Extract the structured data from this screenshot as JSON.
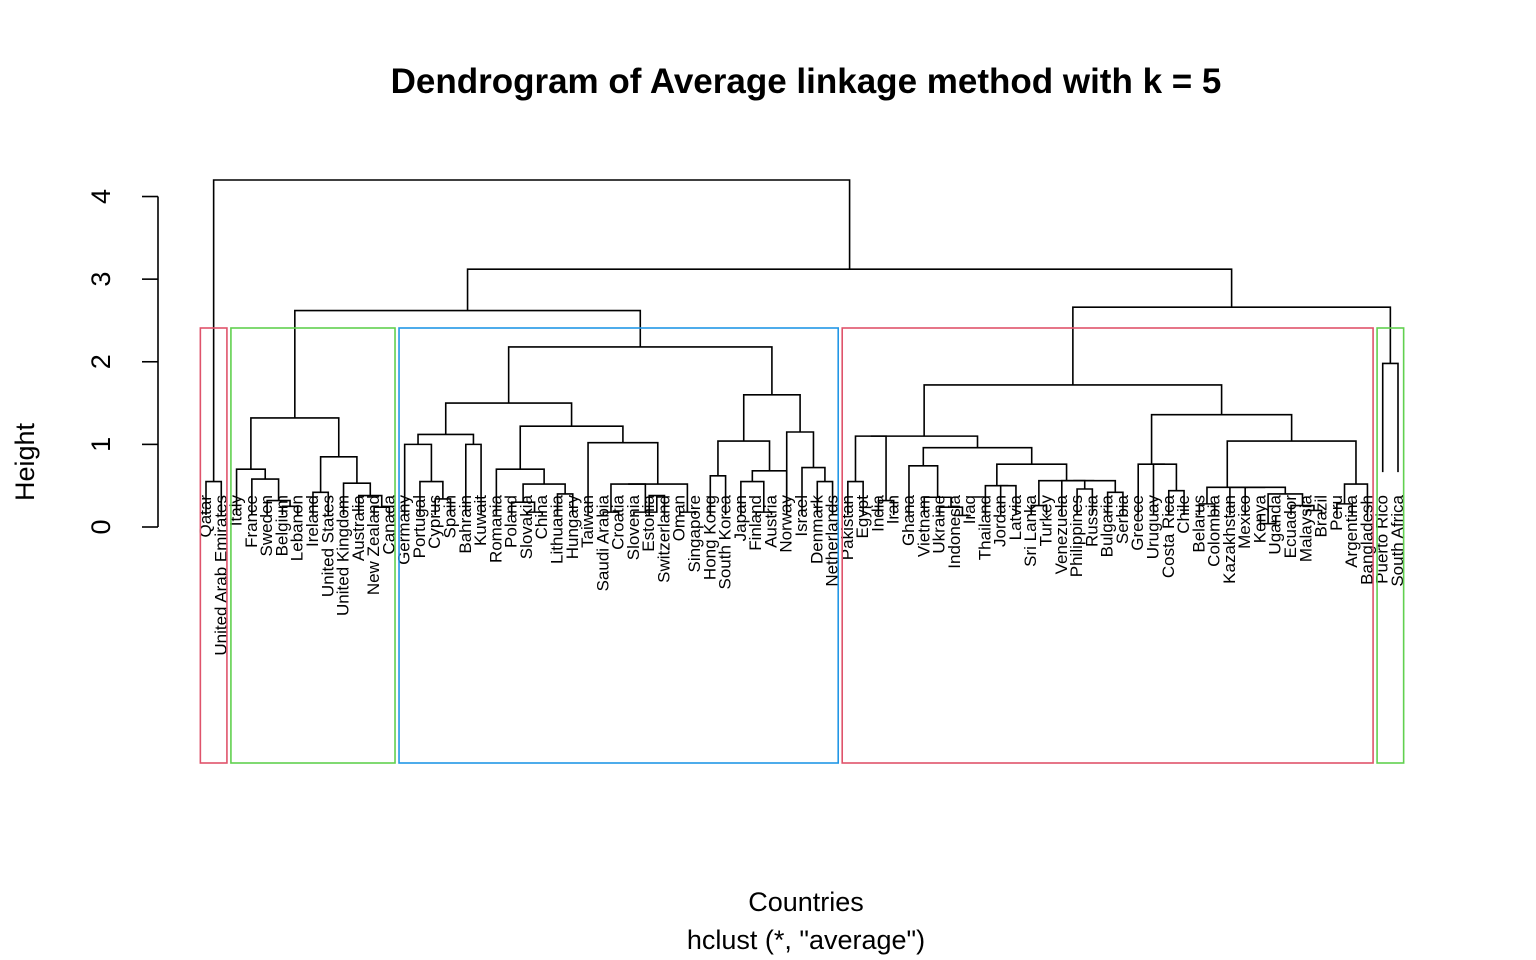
{
  "chart_data": {
    "type": "dendrogram",
    "title": "Dendrogram of Average linkage method with k = 5",
    "xlabel": "Countries",
    "sublabel": "hclust (*, \"average\")",
    "ylabel": "Height",
    "ylim": [
      0,
      4.2
    ],
    "yticks": [
      "0",
      "1",
      "2",
      "3",
      "4"
    ],
    "k": 5,
    "leaves": [
      "Qatar",
      "United Arab Emirates",
      "Italy",
      "France",
      "Sweden",
      "Belgium",
      "Lebanon",
      "Ireland",
      "United States",
      "United Kingdom",
      "Australia",
      "New Zealand",
      "Canada",
      "Germany",
      "Portugal",
      "Cyprus",
      "Spain",
      "Bahrain",
      "Kuwait",
      "Romania",
      "Poland",
      "Slovakia",
      "China",
      "Lithuania",
      "Hungary",
      "Taiwan",
      "Saudi Arabia",
      "Croatia",
      "Slovenia",
      "Estonia",
      "Switzerland",
      "Oman",
      "Singapore",
      "Hong Kong",
      "South Korea",
      "Japan",
      "Finland",
      "Austria",
      "Norway",
      "Israel",
      "Denmark",
      "Netherlands",
      "Pakistan",
      "Egypt",
      "India",
      "Iran",
      "Ghana",
      "Vietnam",
      "Ukraine",
      "Indonesia",
      "Iraq",
      "Thailand",
      "Jordan",
      "Latvia",
      "Sri Lanka",
      "Turkey",
      "Venezuela",
      "Philippines",
      "Russia",
      "Bulgaria",
      "Serbia",
      "Greece",
      "Uruguay",
      "Costa Rica",
      "Chile",
      "Belarus",
      "Colombia",
      "Kazakhstan",
      "Mexico",
      "Kenya",
      "Uganda",
      "Ecuador",
      "Malaysia",
      "Brazil",
      "Peru",
      "Argentina",
      "Bangladesh",
      "Puerto Rico",
      "South Africa"
    ],
    "merges": [
      [
        "Qatar",
        "United Arab Emirates",
        0.55
      ],
      [
        "Belgium",
        "Lebanon",
        0.25
      ],
      [
        "Sweden",
        "M2",
        0.32
      ],
      [
        "France",
        "M3",
        0.58
      ],
      [
        "Italy",
        "M4",
        0.7
      ],
      [
        "Ireland",
        "United States",
        0.42
      ],
      [
        "New Zealand",
        "Canada",
        0.24
      ],
      [
        "Australia",
        "M7",
        0.38
      ],
      [
        "United Kingdom",
        "M8",
        0.53
      ],
      [
        "M6",
        "M9",
        0.85
      ],
      [
        "M5",
        "M10",
        1.32
      ],
      [
        "Cyprus",
        "Spain",
        0.34
      ],
      [
        "Portugal",
        "M12",
        0.55
      ],
      [
        "Germany",
        "M13",
        1.0
      ],
      [
        "Bahrain",
        "Kuwait",
        1.0
      ],
      [
        "M14",
        "M15",
        1.12
      ],
      [
        "Slovakia",
        "China",
        0.18
      ],
      [
        "Poland",
        "M17",
        0.3
      ],
      [
        "Lithuania",
        "Hungary",
        0.4
      ],
      [
        "M18",
        "M19",
        0.52
      ],
      [
        "Romania",
        "M20",
        0.7
      ],
      [
        "Saudi Arabia",
        "Croatia",
        0.18
      ],
      [
        "Estonia",
        "Switzerland",
        0.38
      ],
      [
        "Slovenia",
        "M23",
        0.18
      ],
      [
        "M22",
        "M24",
        0.52
      ],
      [
        "Oman",
        "Singapore",
        0.18
      ],
      [
        "M25",
        "M26",
        0.52
      ],
      [
        "Taiwan",
        "M27",
        1.02
      ],
      [
        "M21",
        "M28",
        1.22
      ],
      [
        "M16",
        "M29",
        1.5
      ],
      [
        "Hong Kong",
        "South Korea",
        0.62
      ],
      [
        "Finland",
        "Austria",
        0.18
      ],
      [
        "Japan",
        "M32",
        0.55
      ],
      [
        "M33",
        "Norway",
        0.68
      ],
      [
        "M31",
        "M34",
        1.04
      ],
      [
        "Denmark",
        "Netherlands",
        0.55
      ],
      [
        "Israel",
        "M36",
        0.72
      ],
      [
        "M37",
        "Norway",
        1.15
      ],
      [
        "M35",
        "M38",
        1.6
      ],
      [
        "M30",
        "M39",
        2.18
      ],
      [
        "M11",
        "M40",
        2.62
      ],
      [
        "Pakistan",
        "Egypt",
        0.55
      ],
      [
        "India",
        "Iran",
        0.32
      ],
      [
        "M42",
        "M43",
        1.1
      ],
      [
        "Indonesia",
        "Iraq",
        0.14
      ],
      [
        "Ukraine",
        "M45",
        0.24
      ],
      [
        "Vietnam",
        "M46",
        0.36
      ],
      [
        "Ghana",
        "M47",
        0.74
      ],
      [
        "Jordan",
        "Latvia",
        0.5
      ],
      [
        "Sri Lanka",
        "Turkey",
        0.26
      ],
      [
        "Philippines",
        "Russia",
        0.46
      ],
      [
        "Venezuela",
        "M51",
        0.56
      ],
      [
        "Bulgaria",
        "Serbia",
        0.42
      ],
      [
        "M52",
        "M53",
        0.56
      ],
      [
        "M50",
        "M54",
        0.56
      ],
      [
        "Thailand",
        "M49",
        0.5
      ],
      [
        "M56",
        "M55",
        0.76
      ],
      [
        "M48",
        "M57",
        0.96
      ],
      [
        "M44",
        "M58",
        1.1
      ],
      [
        "Costa Rica",
        "Chile",
        0.44
      ],
      [
        "Uruguay",
        "M60",
        0.76
      ],
      [
        "Greece",
        "M61",
        0.76
      ],
      [
        "Belarus",
        "Colombia",
        0.28
      ],
      [
        "Kenya",
        "Uganda",
        0.04
      ],
      [
        "Malaysia",
        "Brazil",
        0.2
      ],
      [
        "Ecuador",
        "M65",
        0.26
      ],
      [
        "M64",
        "M66",
        0.4
      ],
      [
        "Mexico",
        "M67",
        0.48
      ],
      [
        "Kazakhstan",
        "M68",
        0.48
      ],
      [
        "M63",
        "M69",
        0.48
      ],
      [
        "Peru",
        "Argentina",
        0.28
      ],
      [
        "M71",
        "Bangladesh",
        0.52
      ],
      [
        "M70",
        "M72",
        1.04
      ],
      [
        "M62",
        "M73",
        1.36
      ],
      [
        "M59",
        "M74",
        1.72
      ],
      [
        "Puerto Rico",
        "South Africa",
        1.98
      ],
      [
        "M75",
        "M76",
        2.66
      ],
      [
        "M41",
        "M77",
        3.12
      ],
      [
        "M1",
        "M78",
        4.2
      ]
    ],
    "clusters": [
      {
        "from": "Qatar",
        "to": "United Arab Emirates",
        "color": "#df536b"
      },
      {
        "from": "Italy",
        "to": "Canada",
        "color": "#61d04f"
      },
      {
        "from": "Germany",
        "to": "Netherlands",
        "color": "#2297e6"
      },
      {
        "from": "Pakistan",
        "to": "Bangladesh",
        "color": "#df536b"
      },
      {
        "from": "Puerto Rico",
        "to": "South Africa",
        "color": "#61d04f"
      }
    ]
  }
}
